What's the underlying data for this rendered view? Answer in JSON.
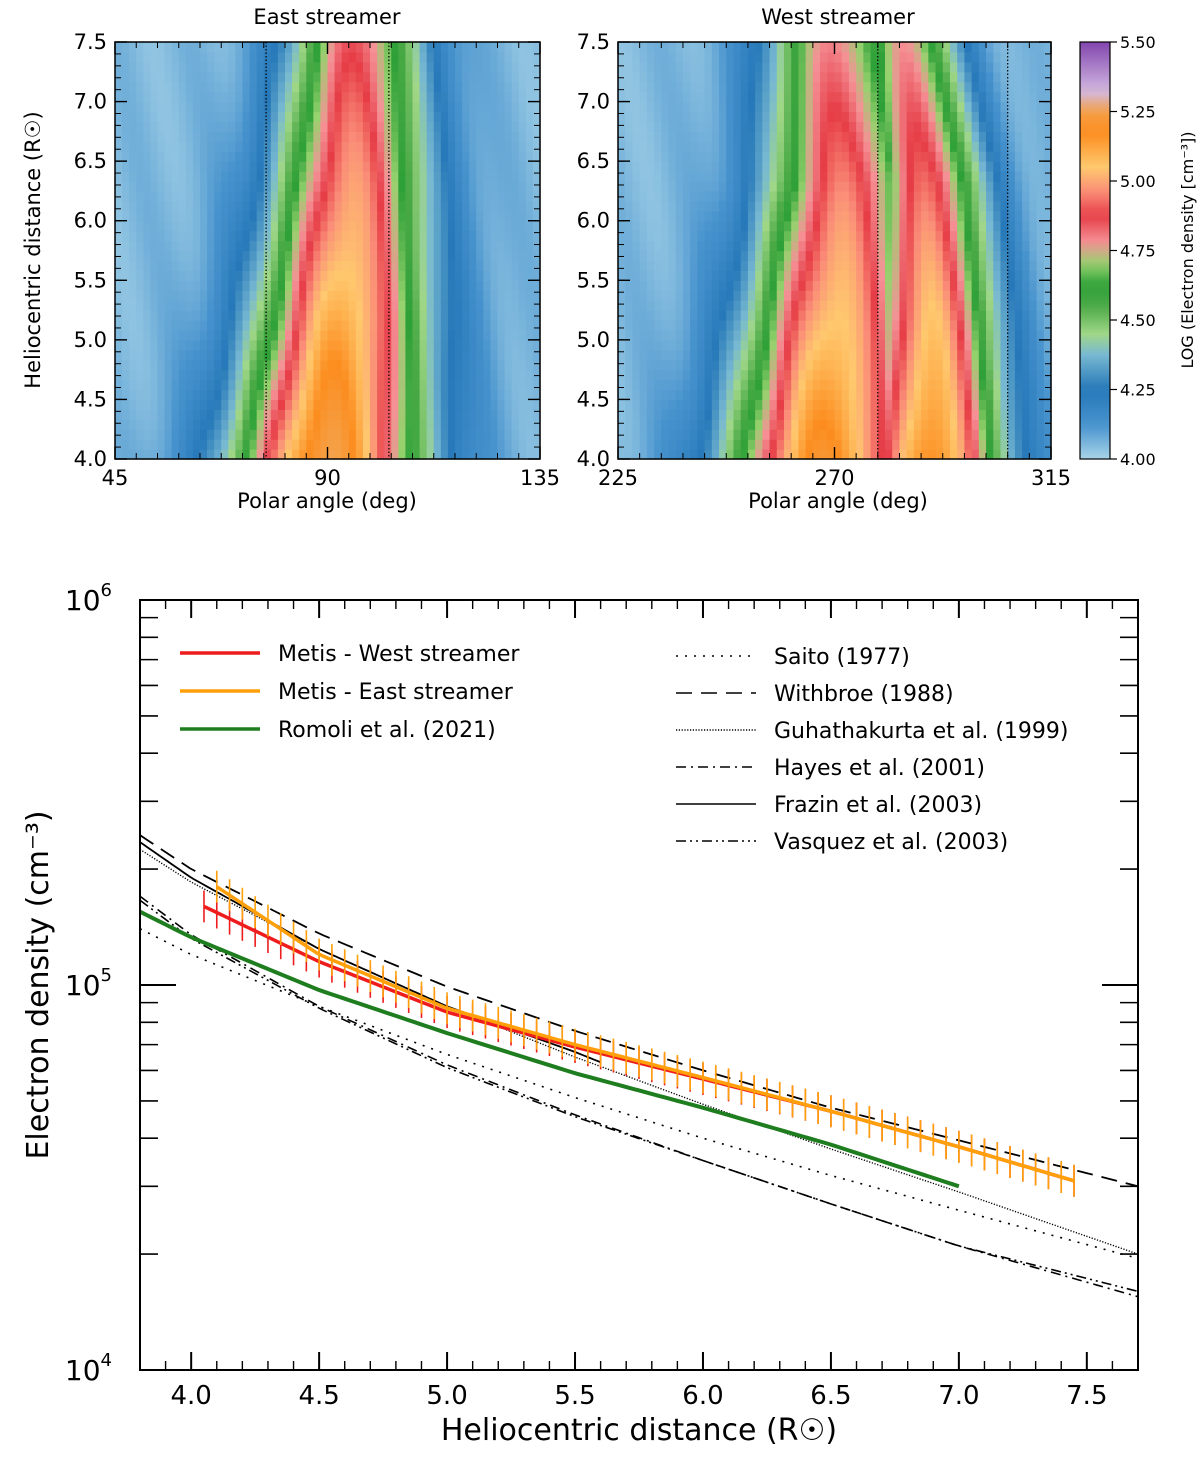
{
  "chart_data": [
    {
      "type": "heatmap",
      "title": "East streamer",
      "xlabel": "Polar angle (deg)",
      "ylabel": "Heliocentric distance (R☉)",
      "xlim": [
        45,
        135
      ],
      "ylim": [
        4.0,
        7.5
      ],
      "xticks": [
        "45",
        "90",
        "135"
      ],
      "yticks": [
        "4.0",
        "4.5",
        "5.0",
        "5.5",
        "6.0",
        "6.5",
        "7.0",
        "7.5"
      ],
      "streamer_center_deg": [
        90,
        93,
        95,
        96
      ],
      "streamer_peak_log_density": [
        5.25,
        4.85
      ],
      "base_log_density": 4.05,
      "boundary_lines_deg": [
        77,
        103
      ]
    },
    {
      "type": "heatmap",
      "title": "West streamer",
      "xlabel": "Polar angle (deg)",
      "ylabel": "",
      "xlim": [
        225,
        315
      ],
      "ylim": [
        4.0,
        7.5
      ],
      "xticks": [
        "225",
        "270",
        "315"
      ],
      "yticks": [
        "4.0",
        "4.5",
        "5.0",
        "5.5",
        "6.0",
        "6.5",
        "7.0",
        "7.5"
      ],
      "streamer_center_deg": [
        268,
        270,
        272,
        270
      ],
      "second_streamer_center_deg": [
        290,
        290,
        289,
        285
      ],
      "streamer_peak_log_density": [
        5.2,
        4.8
      ],
      "base_log_density": 4.05,
      "boundary_lines_deg": [
        279,
        306
      ],
      "colorbar": {
        "label": "LOG (Electron density [cm⁻³])",
        "range": [
          4.0,
          5.5
        ],
        "ticks": [
          "4.00",
          "4.25",
          "4.50",
          "4.75",
          "5.00",
          "5.25",
          "5.50"
        ]
      }
    },
    {
      "type": "line",
      "title": "",
      "xlabel": "Heliocentric distance (R☉)",
      "ylabel": "Electron density (cm⁻³)",
      "xscale": "linear",
      "yscale": "log",
      "xlim": [
        3.8,
        7.7
      ],
      "ylim": [
        10000,
        1000000
      ],
      "xticks": [
        "4.0",
        "4.5",
        "5.0",
        "5.5",
        "6.0",
        "6.5",
        "7.0",
        "7.5"
      ],
      "yticks_major": [
        {
          "base": "10",
          "exp": "4"
        },
        {
          "base": "10",
          "exp": "5"
        },
        {
          "base": "10",
          "exp": "6"
        }
      ],
      "series": [
        {
          "name": "Metis - West streamer",
          "color": "#ee1c1c",
          "style": "solid-errorbars",
          "x": [
            4.05,
            4.5,
            5.0,
            5.5,
            6.0,
            6.5,
            7.0,
            7.45
          ],
          "y": [
            160000,
            115000,
            85000,
            69000,
            57000,
            47000,
            38000,
            31000
          ]
        },
        {
          "name": "Metis - East streamer",
          "color": "#ffa00a",
          "style": "solid-errorbars",
          "x": [
            4.1,
            4.5,
            5.0,
            5.5,
            6.0,
            6.5,
            7.0,
            7.45
          ],
          "y": [
            180000,
            120000,
            87000,
            70000,
            57500,
            47000,
            38000,
            31000
          ]
        },
        {
          "name": "Romoli et al. (2021)",
          "color": "#1e7d1e",
          "style": "solid-thick",
          "x": [
            3.8,
            4.0,
            4.5,
            5.0,
            5.5,
            6.0,
            6.5,
            7.0
          ],
          "y": [
            155000,
            133000,
            97000,
            75000,
            59000,
            48000,
            38500,
            30000
          ]
        },
        {
          "name": "Saito (1977)",
          "color": "#000000",
          "style": "dots",
          "x": [
            3.8,
            4.0,
            4.5,
            5.0,
            5.5,
            6.0,
            6.5,
            7.0,
            7.7
          ],
          "y": [
            140000,
            120000,
            88000,
            66000,
            51000,
            40000,
            32000,
            26000,
            19500
          ]
        },
        {
          "name": "Withbroe (1988)",
          "color": "#000000",
          "style": "dashed",
          "x": [
            3.8,
            4.0,
            4.5,
            5.0,
            5.5,
            6.0,
            6.5,
            7.0,
            7.7
          ],
          "y": [
            245000,
            200000,
            136000,
            99000,
            76000,
            60000,
            48000,
            39500,
            30000
          ]
        },
        {
          "name": "Guhathakurta et al. (1999)",
          "color": "#000000",
          "style": "fine-dots",
          "x": [
            3.8,
            4.0,
            4.5,
            5.0,
            5.5,
            6.0,
            6.5,
            7.0,
            7.7
          ],
          "y": [
            225000,
            185000,
            124000,
            88000,
            65000,
            49000,
            37500,
            29000,
            20000
          ]
        },
        {
          "name": "Hayes et al. (2001)",
          "color": "#000000",
          "style": "dashdot",
          "x": [
            3.8,
            4.0,
            4.5,
            5.0,
            5.5,
            6.0,
            6.5,
            7.0,
            7.7
          ],
          "y": [
            170000,
            135000,
            88000,
            62000,
            46000,
            35000,
            27000,
            21000,
            15500
          ]
        },
        {
          "name": "Frazin et al. (2003)",
          "color": "#000000",
          "style": "solid",
          "x": [
            3.8,
            4.0,
            4.5,
            5.0,
            5.5,
            5.6
          ],
          "y": [
            235000,
            190000,
            124000,
            88000,
            67000,
            63000
          ]
        },
        {
          "name": "Vasquez et al. (2003)",
          "color": "#000000",
          "style": "dashdotdot",
          "x": [
            3.8,
            4.0,
            4.5,
            5.0,
            5.5,
            6.0,
            6.5,
            7.0,
            7.7
          ],
          "y": [
            166000,
            132000,
            87000,
            61000,
            45500,
            35000,
            27000,
            21000,
            16000
          ]
        }
      ]
    }
  ]
}
